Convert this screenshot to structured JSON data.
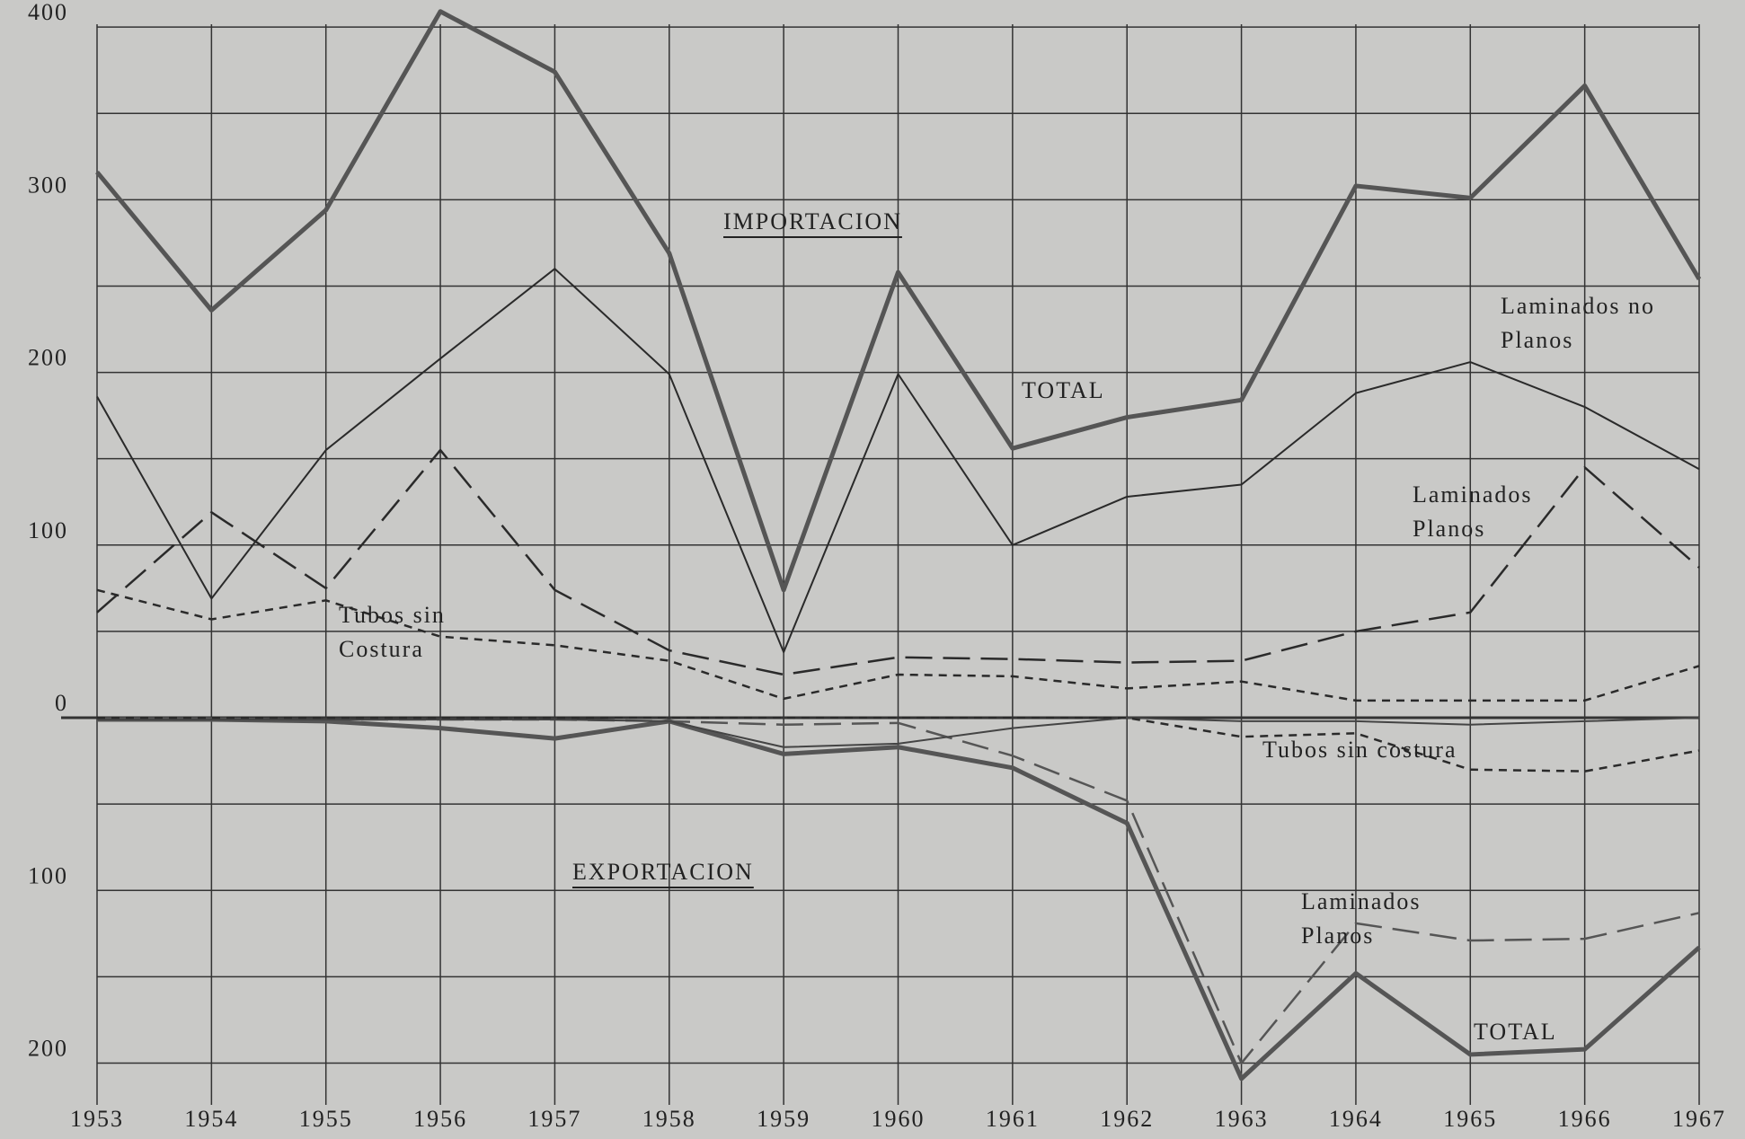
{
  "chart_data": {
    "type": "line",
    "annotations": [
      "IMPORTACION",
      "EXPORTACION"
    ],
    "x": [
      1953,
      1954,
      1955,
      1956,
      1957,
      1958,
      1959,
      1960,
      1961,
      1962,
      1963,
      1964,
      1965,
      1966,
      1967
    ],
    "xlim": [
      1953,
      1967
    ],
    "xticks": [
      1953,
      1954,
      1955,
      1956,
      1957,
      1958,
      1959,
      1960,
      1961,
      1962,
      1963,
      1964,
      1965,
      1966,
      1967
    ],
    "ylim": [
      -220,
      412
    ],
    "yticks": [
      {
        "value": -200,
        "label": "200"
      },
      {
        "value": -100,
        "label": "100"
      },
      0,
      100,
      200,
      300,
      400
    ],
    "yminor": [
      -150,
      -50,
      50,
      150,
      250,
      350
    ],
    "grid": true,
    "series": [
      {
        "name": "TOTAL",
        "color": "#555555",
        "style": "thick",
        "values": [
          316,
          236,
          294,
          409,
          374,
          269,
          74,
          258,
          156,
          174,
          184,
          308,
          301,
          366,
          254
        ]
      },
      {
        "name": "Laminados no Planos",
        "color": "#2a2a2a",
        "style": "solid",
        "values": [
          186,
          69,
          155,
          208,
          260,
          199,
          38,
          199,
          100,
          128,
          135,
          188,
          206,
          180,
          144
        ]
      },
      {
        "name": "Laminados Planos",
        "color": "#2a2a2a",
        "style": "dash",
        "values": [
          61,
          119,
          75,
          155,
          74,
          39,
          25,
          35,
          34,
          32,
          33,
          50,
          61,
          145,
          87
        ]
      },
      {
        "name": "Tubos sin Costura",
        "color": "#2a2a2a",
        "style": "dot",
        "values": [
          74,
          57,
          68,
          47,
          42,
          33,
          11,
          25,
          24,
          17,
          21,
          10,
          10,
          10,
          30
        ]
      },
      {
        "name": "TOTAL",
        "color": "#555555",
        "style": "thick",
        "values": [
          -1,
          -1,
          -2,
          -6,
          -12,
          -2,
          -21,
          -17,
          -29,
          -61,
          -209,
          -148,
          -195,
          -192,
          -133
        ]
      },
      {
        "name": "Laminados Planos",
        "color": "#555555",
        "style": "dash",
        "values": [
          -1,
          -1,
          -1,
          -1,
          -1,
          -2,
          -4,
          -3,
          -22,
          -48,
          -200,
          -119,
          -129,
          -128,
          -113
        ]
      },
      {
        "color": "#444444",
        "style": "solid",
        "values": [
          -1,
          -1,
          -1,
          -1,
          -1,
          -2,
          -17,
          -15,
          -6,
          0,
          -2,
          -2,
          -4,
          -2,
          0
        ]
      },
      {
        "name": "Tubos sin costura",
        "color": "#2a2a2a",
        "style": "dot",
        "values": [
          0,
          0,
          0,
          0,
          0,
          0,
          0,
          0,
          0,
          0,
          -11,
          -9,
          -30,
          -31,
          -19
        ]
      }
    ]
  }
}
